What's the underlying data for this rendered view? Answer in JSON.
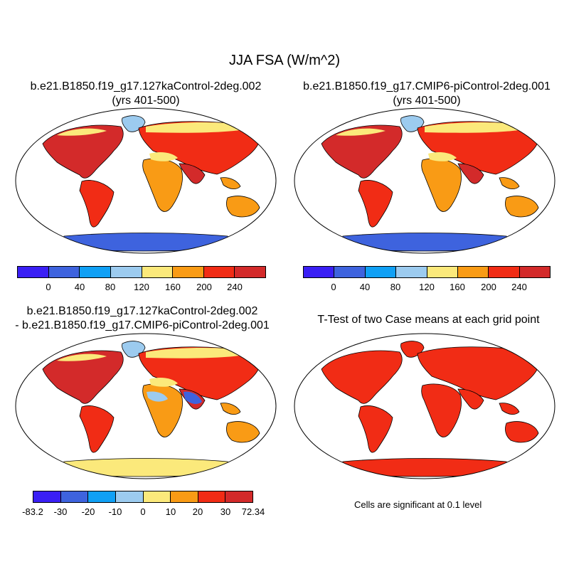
{
  "title": "JJA FSA (W/m^2)",
  "panels": [
    {
      "line1": "b.e21.B1850.f19_g17.127kaControl-2deg.002",
      "line2": "(yrs 401-500)"
    },
    {
      "line1": "b.e21.B1850.f19_g17.CMIP6-piControl-2deg.001",
      "line2": "(yrs 401-500)"
    },
    {
      "line1": "b.e21.B1850.f19_g17.127kaControl-2deg.002",
      "line2": "- b.e21.B1850.f19_g17.CMIP6-piControl-2deg.001"
    },
    {
      "line1": "T-Test of two Case means at each grid point"
    }
  ],
  "colorbar_main": {
    "colors": [
      "#3a1ff5",
      "#3e63de",
      "#10a0f5",
      "#9ccbef",
      "#fbe97b",
      "#f99b15",
      "#f12c15",
      "#d32a2a"
    ],
    "labels": [
      "0",
      "40",
      "80",
      "120",
      "160",
      "200",
      "240"
    ]
  },
  "colorbar_diff": {
    "colors": [
      "#3a1ff5",
      "#3e63de",
      "#10a0f5",
      "#9ccbef",
      "#fbe97b",
      "#f99b15",
      "#f12c15",
      "#d32a2a"
    ],
    "labels": [
      "-83.2",
      "-30",
      "-20",
      "-10",
      "0",
      "10",
      "20",
      "30",
      "72.34"
    ]
  },
  "significance_note": "Cells are significant at 0.1 level"
}
